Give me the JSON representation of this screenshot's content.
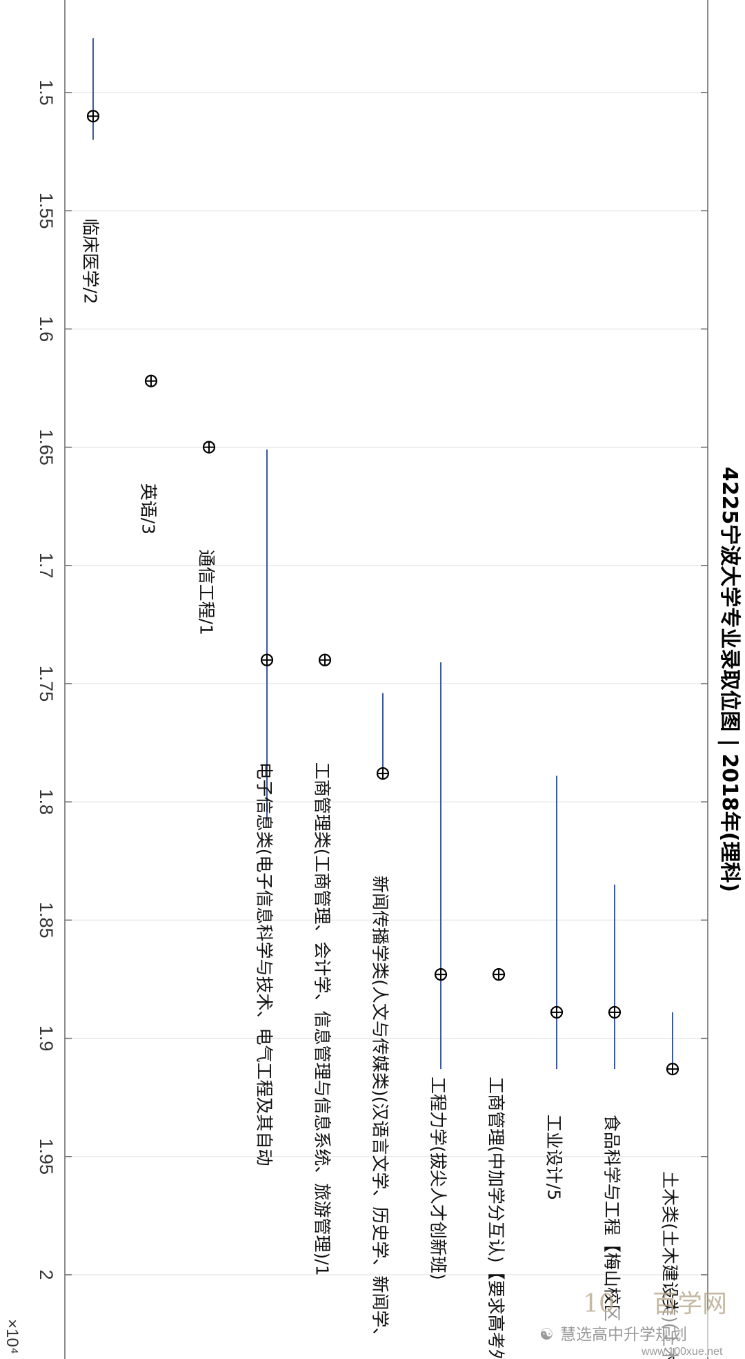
{
  "chart_data": {
    "type": "scatter",
    "title": "4225宁波大学专业录取位图 | 2018年(理科)",
    "axis_multiplier": "×10⁴",
    "rank_axis": {
      "range": [
        1.46,
        2.0
      ],
      "ticks": [
        1.5,
        1.55,
        1.6,
        1.65,
        1.7,
        1.75,
        1.8,
        1.85,
        1.9,
        1.95,
        2
      ]
    },
    "grid": true,
    "series": [
      {
        "label": "临床医学/2",
        "rank": 1.51,
        "range": [
          1.477,
          1.52
        ]
      },
      {
        "label": "英语/3",
        "rank": 1.622,
        "range": null
      },
      {
        "label": "通信工程/1",
        "rank": 1.65,
        "range": null
      },
      {
        "label": "电子信息类(电子信息科学与技术、电气工程及其自动",
        "rank": 1.74,
        "range": [
          1.651,
          1.808
        ]
      },
      {
        "label": "工商管理类(工商管理、会计学、信息管理与信息系统、旅游管理)/1",
        "rank": 1.74,
        "range": null
      },
      {
        "label": "新闻传播学类(人文与传媒类)(汉语言文学、历史学、新闻学、",
        "rank": 1.788,
        "range": [
          1.754,
          1.788
        ]
      },
      {
        "label": "工程力学(拔尖人才创新班)",
        "rank": 1.873,
        "range": [
          1.741,
          1.913
        ]
      },
      {
        "label": "工商管理(中加学分互认)【要求高考外语",
        "rank": 1.873,
        "range": null
      },
      {
        "label": "工业设计/5",
        "rank": 1.889,
        "range": [
          1.789,
          1.913
        ]
      },
      {
        "label": "食品科学与工程【梅山校区",
        "rank": 1.889,
        "range": [
          1.835,
          1.913
        ]
      },
      {
        "label": "土木类(土木建设类)(土木工",
        "rank": 1.913,
        "range": [
          1.889,
          1.913
        ]
      }
    ]
  },
  "watermark": {
    "account": "慧选高中升学规划",
    "brand": "百学网",
    "url": "www.100xue.net"
  }
}
